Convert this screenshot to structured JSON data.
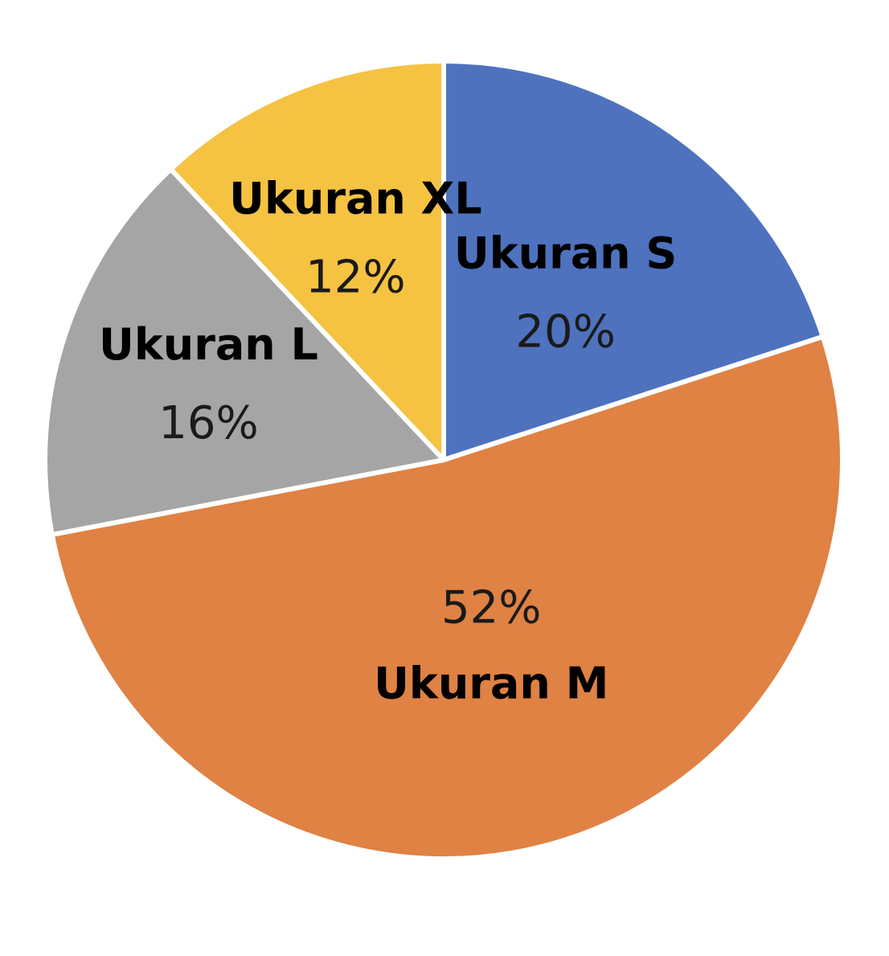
{
  "chart_data": {
    "type": "pie",
    "categories": [
      "Ukuran S",
      "Ukuran M",
      "Ukuran L",
      "Ukuran XL"
    ],
    "values": [
      20,
      52,
      16,
      12
    ],
    "value_labels": [
      "20%",
      "52%",
      "16%",
      "12%"
    ],
    "colors": [
      "#4E72BE",
      "#DF8244",
      "#A5A5A5",
      "#F5C242"
    ],
    "start_angle_deg": 0,
    "direction": "clockwise",
    "legend": "none",
    "title": ""
  }
}
